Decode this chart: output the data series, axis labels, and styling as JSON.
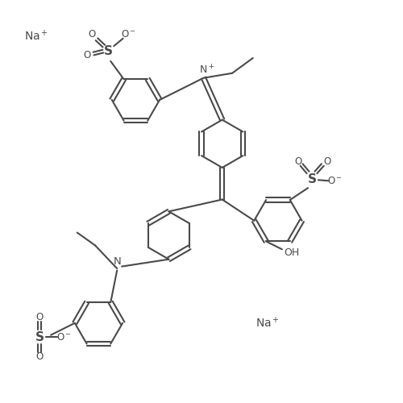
{
  "bg": "#ffffff",
  "lc": "#4a4a4a",
  "lw": 1.5,
  "fs": 9,
  "figsize": [
    5.0,
    5.0
  ],
  "dpi": 100,
  "xlim": [
    0,
    10
  ],
  "ylim": [
    0,
    10
  ]
}
